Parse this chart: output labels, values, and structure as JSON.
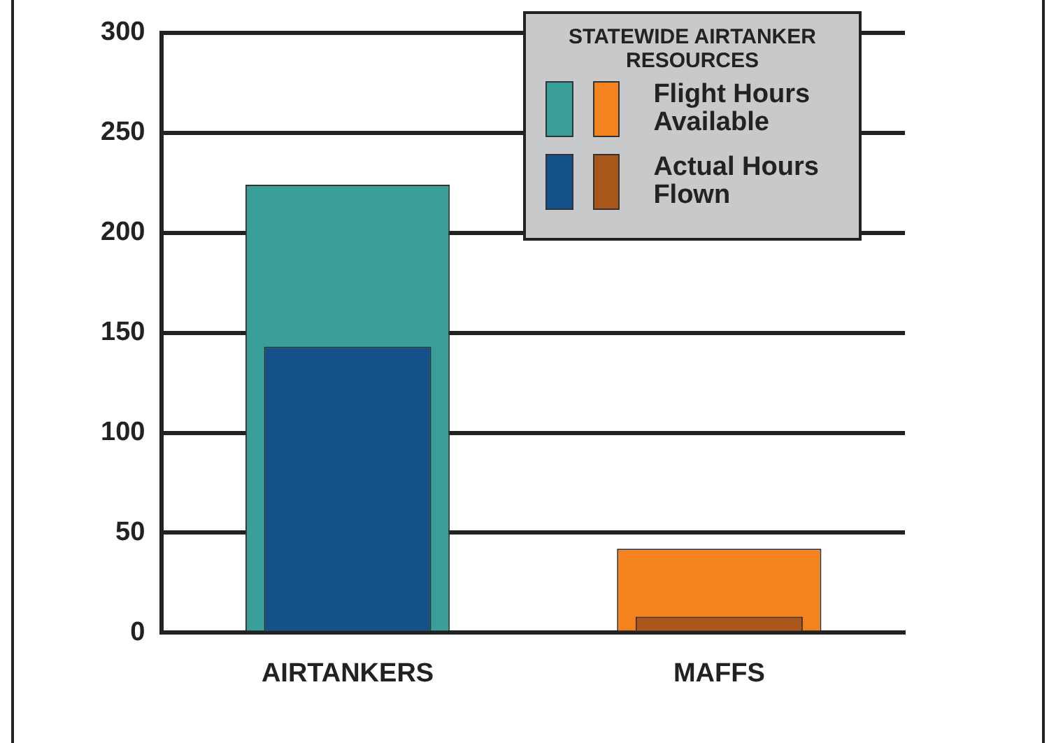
{
  "chart_data": {
    "type": "bar",
    "categories": [
      "AIRTANKERS",
      "MAFFS"
    ],
    "series": [
      {
        "name": "Flight Hours Available",
        "colors": [
          "#3a9f98",
          "#f4821f"
        ],
        "values": [
          224,
          42
        ]
      },
      {
        "name": "Actual Hours Flown",
        "colors": [
          "#14518a",
          "#a8561a"
        ],
        "values": [
          143,
          8
        ]
      }
    ],
    "ylim": [
      0,
      300
    ],
    "yticks": [
      0,
      50,
      100,
      150,
      200,
      250,
      300
    ],
    "grid": "y",
    "legend": "top right",
    "legend_title": "STATEWIDE AIRTANKER RESOURCES"
  }
}
